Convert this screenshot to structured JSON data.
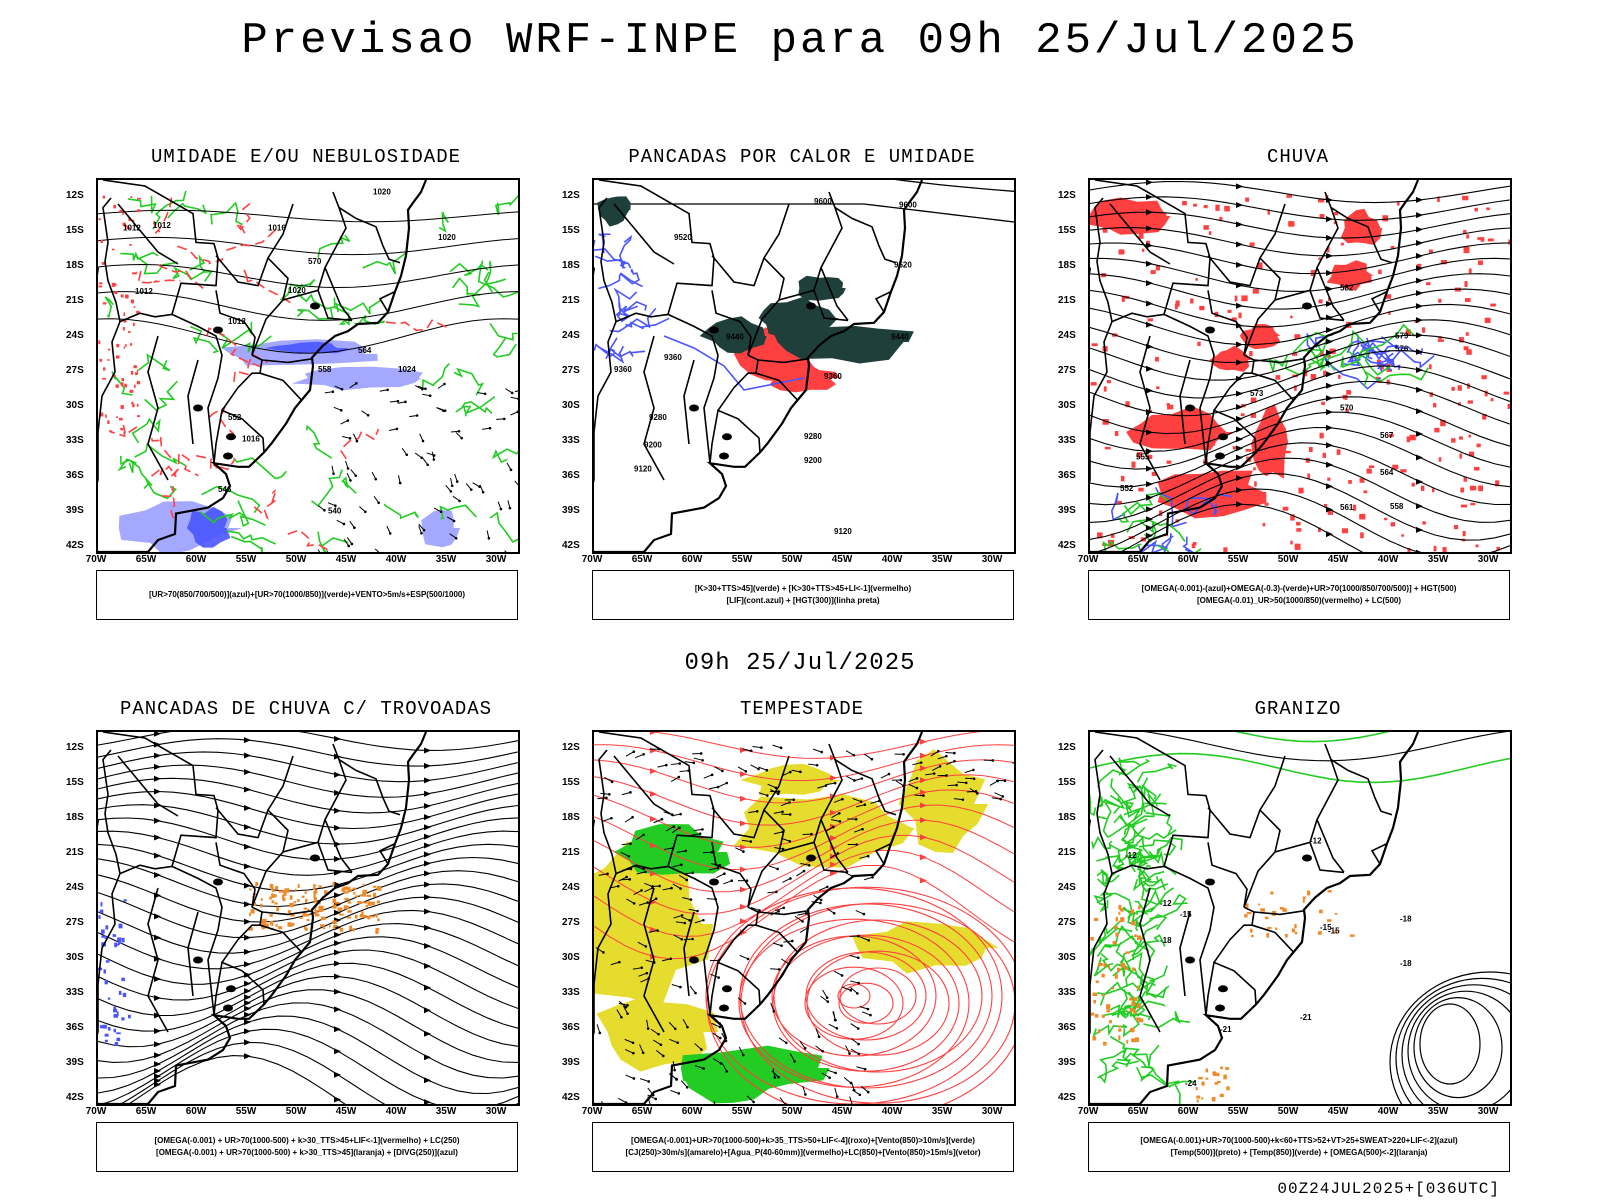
{
  "header": {
    "title": "Previsao WRF-INPE  para 09h 25/Jul/2025"
  },
  "middle": {
    "subtitle": "09h 25/Jul/2025"
  },
  "footer": {
    "run": "00Z24JUL2025+[036UTC]"
  },
  "axes": {
    "lat_labels": [
      "12S",
      "15S",
      "18S",
      "21S",
      "24S",
      "27S",
      "30S",
      "33S",
      "36S",
      "39S",
      "42S"
    ],
    "lon_labels": [
      "70W",
      "65W",
      "60W",
      "55W",
      "50W",
      "45W",
      "40W",
      "35W",
      "30W"
    ]
  },
  "colors": {
    "blue": "#4a55ff",
    "lightblue": "#9aa0ff",
    "green": "#22cc22",
    "red": "#ff4040",
    "darkteal": "#1f3f3a",
    "yellow": "#e6dc2e",
    "orange": "#f08a28",
    "black": "#000000"
  },
  "panels": [
    {
      "id": "umidade",
      "title": "UMIDADE E/OU NEBULOSIDADE",
      "legend": [
        "[UR>70(850/700/500)](azul)+[UR>70(1000/850)](verde)+VENTO>5m/s+ESP(500/1000)"
      ],
      "contour_labels": [
        "1012",
        "1012",
        "1016",
        "1020",
        "1020",
        "1020",
        "1024",
        "1012",
        "1016",
        "570",
        "564",
        "558",
        "552",
        "546",
        "540",
        "1012"
      ]
    },
    {
      "id": "pancadas-calor",
      "title": "PANCADAS POR CALOR E UMIDADE",
      "legend": [
        "[K>30+TTS>45](verde) + [K>30+TTS>45+LI<-1](vermelho)",
        "[LIF](cont.azul) + [HGT(300)](linha preta)"
      ],
      "contour_labels": [
        "9600",
        "9600",
        "9520",
        "9520",
        "9440",
        "9440",
        "9360",
        "9360",
        "9360",
        "9280",
        "9280",
        "9200",
        "9200",
        "9120",
        "9120"
      ]
    },
    {
      "id": "chuva",
      "title": "CHUVA",
      "legend": [
        "[OMEGA(-0.001)-(azul)+OMEGA(-0.3)-(verde)+UR>70(1000/850/700/500)] + HGT(500)",
        "[OMEGA(-0.01)_UR>50(1000/850)(vermelho) + LC(500)"
      ],
      "contour_labels": [
        "582",
        "579",
        "576",
        "573",
        "570",
        "567",
        "564",
        "561",
        "558",
        "555",
        "552"
      ]
    },
    {
      "id": "pancadas-trovoadas",
      "title": "PANCADAS DE CHUVA C/ TROVOADAS",
      "legend": [
        "[OMEGA(-0.001) + UR>70(1000-500) + k>30_TTS>45+LIF<-1](vermelho) + LC(250)",
        "[OMEGA(-0.001) + UR>70(1000-500) + k>30_TTS>45](laranja) + [DIVG(250)](azul)"
      ],
      "contour_labels": []
    },
    {
      "id": "tempestade",
      "title": "TEMPESTADE",
      "legend": [
        "[OMEGA(-0.001)+UR>70(1000-500)+k>35_TTS>50+LIF<-4](roxo)+[Vento(850)>10m/s](verde)",
        "[CJ(250)>30m/s](amarelo)+[Agua_P(40-60mm)](vermelho)+LC(850)+[Vento(850)>15m/s](vetor)"
      ],
      "contour_labels": []
    },
    {
      "id": "granizo",
      "title": "GRANIZO",
      "legend": [
        "[OMEGA(-0.001)+UR>70(1000-500)+k<60+TTS>52+VT>25+SWEAT>220+LIF<-2](azul)",
        "[Temp(500)](preto) + [Temp(850)](verde) + [OMEGA(500)<-2](laranja)"
      ],
      "contour_labels": [
        "-12",
        "-12",
        "-15",
        "-18",
        "-15",
        "-18",
        "-21",
        "-21",
        "-24",
        "-12",
        "-15",
        "-18"
      ]
    }
  ]
}
